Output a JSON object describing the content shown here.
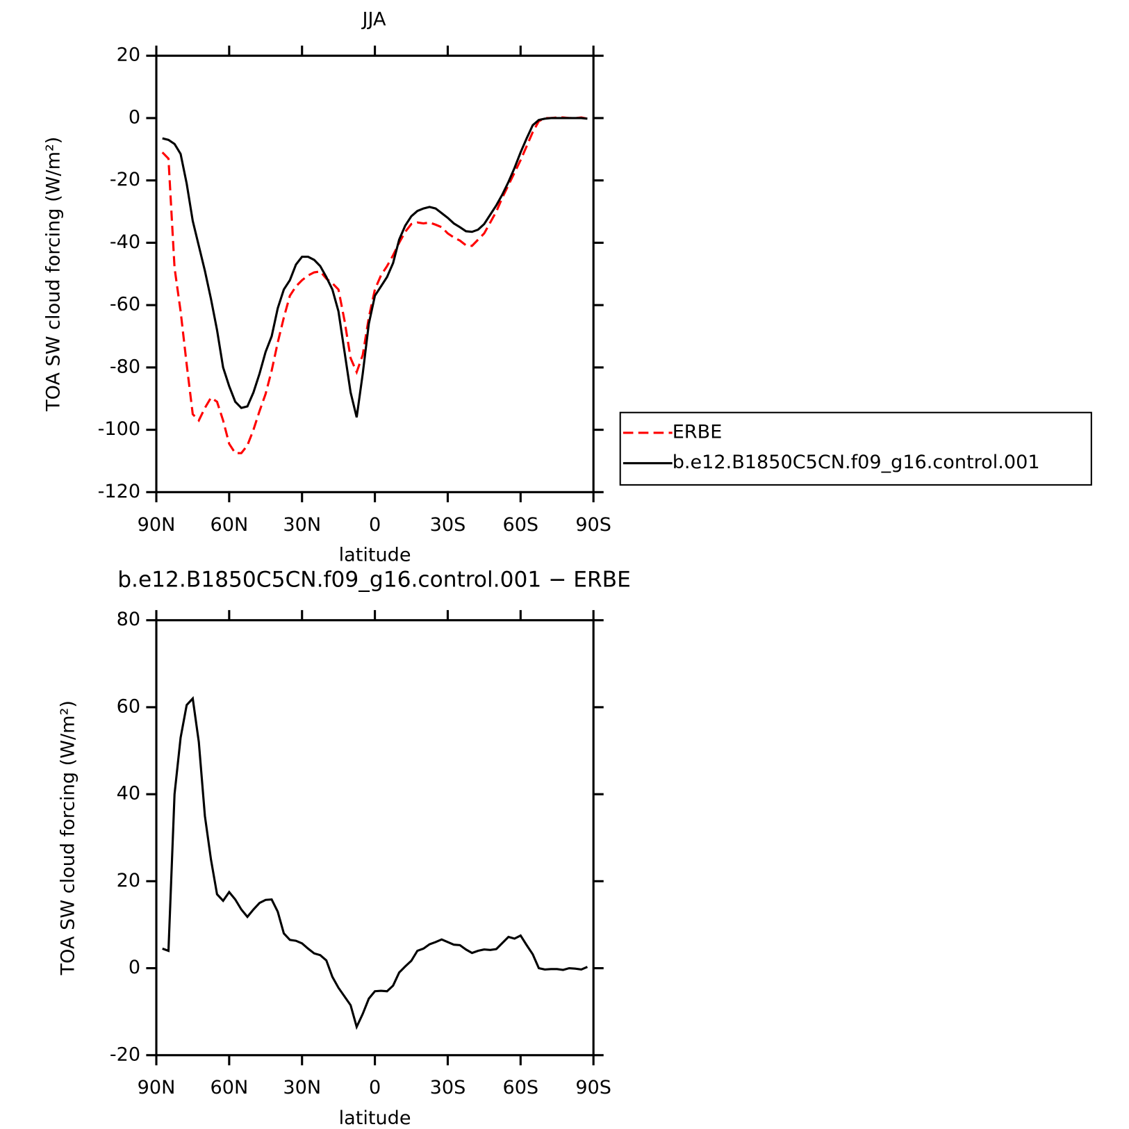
{
  "chart_data": [
    {
      "type": "line",
      "title": "JJA",
      "xlabel": "latitude",
      "ylabel": "TOA SW cloud forcing (W/m²)",
      "x": [
        87.5,
        85,
        82.5,
        80,
        77.5,
        75,
        72.5,
        70,
        67.5,
        65,
        62.5,
        60,
        57.5,
        55,
        52.5,
        50,
        47.5,
        45,
        42.5,
        40,
        37.5,
        35,
        32.5,
        30,
        27.5,
        25,
        22.5,
        20,
        17.5,
        15,
        12.5,
        10,
        7.5,
        5,
        2.5,
        0,
        -2.5,
        -5,
        -7.5,
        -10,
        -12.5,
        -15,
        -17.5,
        -20,
        -22.5,
        -25,
        -27.5,
        -30,
        -32.5,
        -35,
        -37.5,
        -40,
        -42.5,
        -45,
        -47.5,
        -50,
        -52.5,
        -55,
        -57.5,
        -60,
        -62.5,
        -65,
        -67.5,
        -70,
        -72.5,
        -75,
        -77.5,
        -80,
        -82.5,
        -85,
        -87.5
      ],
      "xlim": [
        90,
        -90
      ],
      "xticks": [
        {
          "value": 90,
          "label": "90N"
        },
        {
          "value": 60,
          "label": "60N"
        },
        {
          "value": 30,
          "label": "30N"
        },
        0,
        {
          "value": -30,
          "label": "30S"
        },
        {
          "value": -60,
          "label": "60S"
        },
        {
          "value": -90,
          "label": "90S"
        }
      ],
      "ylim": [
        -120,
        20
      ],
      "yticks": [
        -120,
        -100,
        -80,
        -60,
        -40,
        -20,
        0,
        20
      ],
      "legend": "right",
      "series": [
        {
          "name": "ERBE",
          "color": "#ff0000",
          "dashed": true,
          "values": [
            -11,
            -13,
            -48,
            -62,
            -79,
            -95,
            -97,
            -93,
            -89.7,
            -91,
            -97,
            -104.5,
            -107.5,
            -107.5,
            -105,
            -100,
            -94,
            -88.5,
            -81,
            -72,
            -64,
            -57,
            -54,
            -52,
            -50.5,
            -49.5,
            -49.2,
            -51.5,
            -53,
            -55,
            -65,
            -77,
            -81.5,
            -76,
            -64,
            -55,
            -50.5,
            -47.5,
            -44,
            -40,
            -36.5,
            -34,
            -33.5,
            -33.8,
            -33.5,
            -34.2,
            -35,
            -37,
            -38.3,
            -39.3,
            -40.8,
            -41,
            -39,
            -37,
            -33.5,
            -30,
            -25.5,
            -21.5,
            -17.5,
            -13.5,
            -9,
            -4.5,
            -1,
            0,
            0,
            0.2,
            0.2,
            0,
            0,
            0.2,
            -0.2
          ]
        },
        {
          "name": "b.e12.B1850C5CN.f09_g16.control.001",
          "color": "#000000",
          "dashed": false,
          "values": [
            -6.5,
            -7,
            -8.3,
            -11.5,
            -21,
            -33,
            -41,
            -49,
            -58,
            -68,
            -80,
            -86,
            -91,
            -93,
            -92.5,
            -88,
            -82,
            -75,
            -70,
            -61,
            -55,
            -52,
            -47,
            -44.5,
            -44.5,
            -45.5,
            -47.5,
            -51,
            -55,
            -62,
            -75,
            -88,
            -96,
            -82,
            -66,
            -57,
            -54,
            -51,
            -46.5,
            -39,
            -34.5,
            -31.5,
            -29.8,
            -29,
            -28.5,
            -29,
            -30.5,
            -32,
            -33.8,
            -35,
            -36.3,
            -36.5,
            -35.8,
            -34,
            -31,
            -28,
            -24.5,
            -20.5,
            -16,
            -11,
            -6.5,
            -2.3,
            -0.6,
            -0.2,
            0,
            0,
            0,
            0,
            0,
            0,
            -0.2
          ]
        }
      ]
    },
    {
      "type": "line",
      "title": "b.e12.B1850C5CN.f09_g16.control.001 − ERBE",
      "xlabel": "latitude",
      "ylabel": "TOA SW cloud forcing (W/m²)",
      "x": [
        87.5,
        85,
        82.5,
        80,
        77.5,
        75,
        72.5,
        70,
        67.5,
        65,
        62.5,
        60,
        57.5,
        55,
        52.5,
        50,
        47.5,
        45,
        42.5,
        40,
        37.5,
        35,
        32.5,
        30,
        27.5,
        25,
        22.5,
        20,
        17.5,
        15,
        12.5,
        10,
        7.5,
        5,
        2.5,
        0,
        -2.5,
        -5,
        -7.5,
        -10,
        -12.5,
        -15,
        -17.5,
        -20,
        -22.5,
        -25,
        -27.5,
        -30,
        -32.5,
        -35,
        -37.5,
        -40,
        -42.5,
        -45,
        -47.5,
        -50,
        -52.5,
        -55,
        -57.5,
        -60,
        -62.5,
        -65,
        -67.5,
        -70,
        -72.5,
        -75,
        -77.5,
        -80,
        -82.5,
        -85,
        -87.5
      ],
      "xlim": [
        90,
        -90
      ],
      "xticks": [
        {
          "value": 90,
          "label": "90N"
        },
        {
          "value": 60,
          "label": "60N"
        },
        {
          "value": 30,
          "label": "30N"
        },
        0,
        {
          "value": -30,
          "label": "30S"
        },
        {
          "value": -60,
          "label": "60S"
        },
        {
          "value": -90,
          "label": "90S"
        }
      ],
      "ylim": [
        -20,
        80
      ],
      "yticks": [
        -20,
        0,
        20,
        40,
        60,
        80
      ],
      "series": [
        {
          "color": "#000000",
          "dashed": false,
          "values": [
            4.5,
            4,
            40,
            53,
            60.5,
            62,
            52,
            35,
            25,
            17,
            15.5,
            17.5,
            15.8,
            13.5,
            11.8,
            13.5,
            15,
            15.7,
            15.8,
            13,
            8,
            6.5,
            6.3,
            5.7,
            4.5,
            3.4,
            3,
            1.8,
            -2,
            -4.5,
            -6.5,
            -8.5,
            -13.5,
            -10.5,
            -7,
            -5.3,
            -5.2,
            -5.3,
            -4,
            -1,
            0.4,
            1.7,
            4,
            4.5,
            5.5,
            6,
            6.6,
            6,
            5.4,
            5.3,
            4.3,
            3.5,
            4,
            4.3,
            4.2,
            4.4,
            5.8,
            7.2,
            6.8,
            7.5,
            5.3,
            3.2,
            0,
            -0.3,
            -0.2,
            -0.2,
            -0.4,
            0,
            -0.1,
            -0.3,
            0.3
          ]
        }
      ]
    }
  ]
}
